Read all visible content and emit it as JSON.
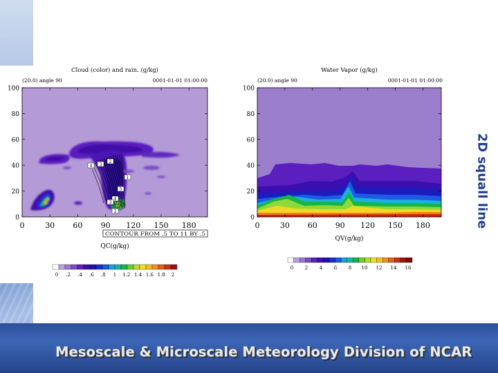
{
  "slide": {
    "side_title": "2D squall line",
    "footer": "Mesoscale & Microscale Meteorology Division of NCAR"
  },
  "colors": {
    "background_field": "#b49ad6",
    "footer_blue": "#2f56a3",
    "title_blue": "#1f3c8f"
  },
  "chart_data": [
    {
      "type": "heatmap",
      "title": "Cloud (color) and rain. (g/kg)",
      "subtitle_left": "(20.0) angle 90",
      "subtitle_right": "0001-01-01 01:00:00",
      "xlabel": "QC(g/kg)",
      "ylabel": "",
      "xlim": [
        0,
        200
      ],
      "ylim": [
        0,
        100
      ],
      "x_ticks": [
        0,
        30,
        60,
        90,
        120,
        150,
        180
      ],
      "y_ticks": [
        0,
        20,
        40,
        60,
        80,
        100
      ],
      "annotation": "CONTOUR FROM .5 TO 11 BY .5",
      "contour_labels": [
        "4",
        "3",
        "2",
        "1",
        "5",
        "4",
        "3",
        "2"
      ],
      "colorbar_labels": [
        "0",
        ".2",
        ".4",
        ".6",
        ".8",
        "1",
        "1.2",
        "1.4",
        "1.6",
        "1.8",
        "2"
      ]
    },
    {
      "type": "heatmap",
      "title": "Water Vapor (g/kg)",
      "subtitle_left": "(20.0) angle 90",
      "subtitle_right": "0001-01-01 01:00:00",
      "xlabel": "QV(g/kg)",
      "ylabel": "",
      "xlim": [
        0,
        200
      ],
      "ylim": [
        0,
        100
      ],
      "x_ticks": [
        0,
        30,
        60,
        90,
        120,
        150,
        180
      ],
      "y_ticks": [
        0,
        20,
        40,
        60,
        80,
        100
      ],
      "colorbar_labels": [
        "0",
        "2",
        "4",
        "6",
        "8",
        "10",
        "12",
        "14",
        "16"
      ]
    }
  ]
}
